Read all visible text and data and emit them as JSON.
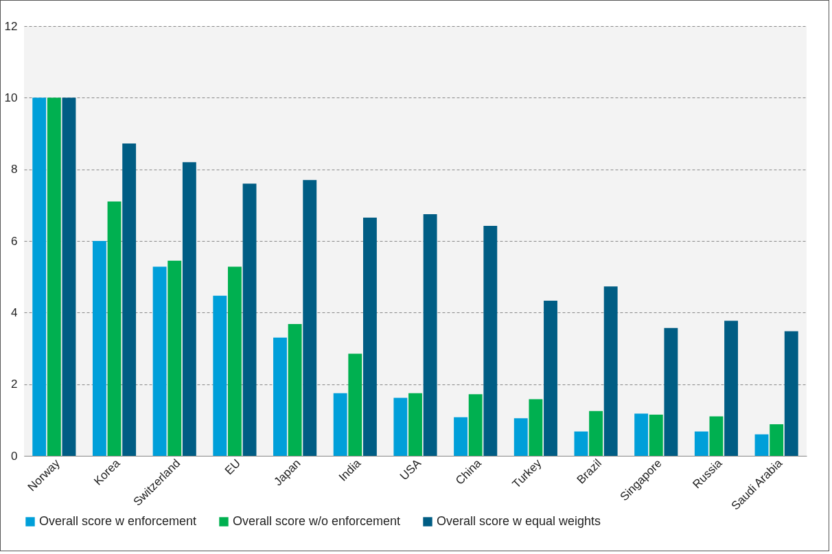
{
  "chart_data": {
    "type": "bar",
    "categories": [
      "Norway",
      "Korea",
      "Switzerland",
      "EU",
      "Japan",
      "India",
      "USA",
      "China",
      "Turkey",
      "Brazil",
      "Singapore",
      "Russia",
      "Saudi Arabia"
    ],
    "series": [
      {
        "name": "Overall score w enforcement",
        "color": "#009fd9",
        "values": [
          10,
          6.0,
          5.28,
          4.47,
          3.3,
          1.75,
          1.62,
          1.08,
          1.05,
          0.68,
          1.18,
          0.68,
          0.6
        ]
      },
      {
        "name": "Overall score w/o enforcement",
        "color": "#00b050",
        "values": [
          10,
          7.1,
          5.45,
          5.28,
          3.68,
          2.85,
          1.75,
          1.72,
          1.58,
          1.25,
          1.15,
          1.1,
          0.88
        ]
      },
      {
        "name": "Overall score w equal weights",
        "color": "#005d84",
        "values": [
          10,
          8.72,
          8.2,
          7.6,
          7.7,
          6.65,
          6.75,
          6.42,
          4.33,
          4.73,
          3.57,
          3.77,
          3.48
        ]
      }
    ],
    "ylim": [
      0,
      12
    ],
    "yticks": [
      0,
      2,
      4,
      6,
      8,
      10,
      12
    ],
    "grid": "y",
    "legend": "bottom"
  }
}
